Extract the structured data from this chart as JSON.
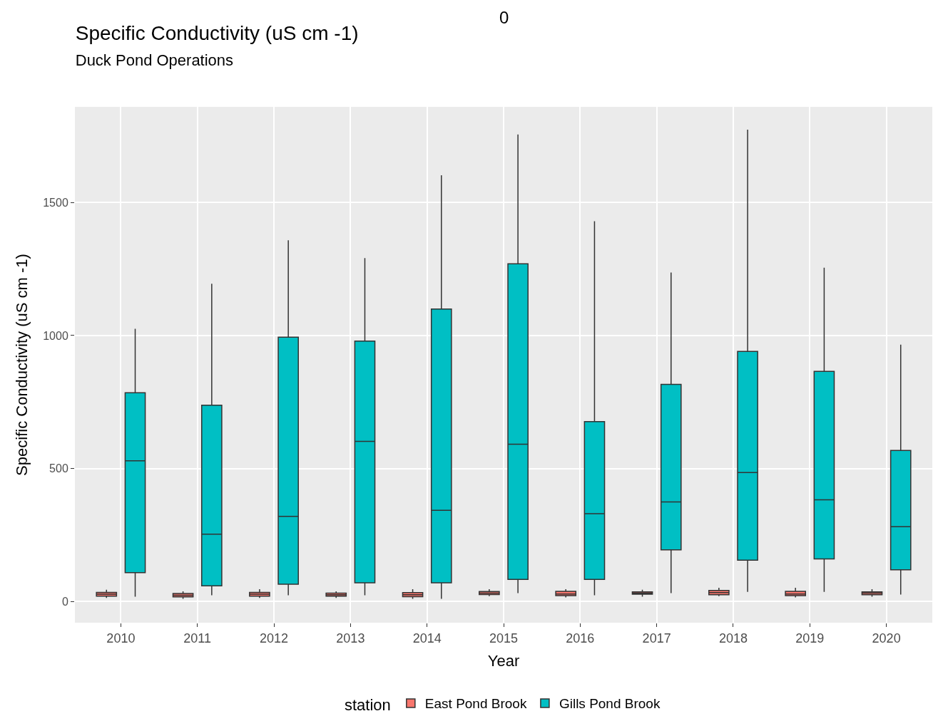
{
  "chart_data": {
    "type": "box",
    "title": "Specific Conductivity (uS cm -1)",
    "subtitle": "Duck Pond Operations",
    "xlabel": "Year",
    "ylabel": "Specific Conductivity (uS cm -1)",
    "legend_title": "station",
    "annotations": [
      "0"
    ],
    "categories": [
      "2010",
      "2011",
      "2012",
      "2013",
      "2014",
      "2015",
      "2016",
      "2017",
      "2018",
      "2019",
      "2020"
    ],
    "series": [
      {
        "name": "East Pond Brook",
        "color": "#f8766d",
        "boxes": [
          {
            "low": 13,
            "q1": 20,
            "median": 27,
            "q3": 34,
            "high": 44
          },
          {
            "low": 10,
            "q1": 17,
            "median": 23,
            "q3": 30,
            "high": 38
          },
          {
            "low": 13,
            "q1": 20,
            "median": 27,
            "q3": 34,
            "high": 46
          },
          {
            "low": 13,
            "q1": 20,
            "median": 25,
            "q3": 31,
            "high": 38
          },
          {
            "low": 10,
            "q1": 18,
            "median": 25,
            "q3": 33,
            "high": 46
          },
          {
            "low": 20,
            "q1": 26,
            "median": 31,
            "q3": 37,
            "high": 46
          },
          {
            "low": 15,
            "q1": 22,
            "median": 28,
            "q3": 38,
            "high": 46
          },
          {
            "low": 18,
            "q1": 27,
            "median": 31,
            "q3": 36,
            "high": 44
          },
          {
            "low": 20,
            "q1": 25,
            "median": 33,
            "q3": 41,
            "high": 51
          },
          {
            "low": 15,
            "q1": 22,
            "median": 28,
            "q3": 38,
            "high": 51
          },
          {
            "low": 18,
            "q1": 25,
            "median": 31,
            "q3": 36,
            "high": 46
          }
        ]
      },
      {
        "name": "Gills Pond Brook",
        "color": "#00bfc4",
        "boxes": [
          {
            "low": 18,
            "q1": 108,
            "median": 529,
            "q3": 785,
            "high": 1025
          },
          {
            "low": 23,
            "q1": 59,
            "median": 253,
            "q3": 738,
            "high": 1195
          },
          {
            "low": 23,
            "q1": 65,
            "median": 320,
            "q3": 994,
            "high": 1358
          },
          {
            "low": 23,
            "q1": 70,
            "median": 602,
            "q3": 979,
            "high": 1291
          },
          {
            "low": 10,
            "q1": 70,
            "median": 343,
            "q3": 1100,
            "high": 1603
          },
          {
            "low": 31,
            "q1": 83,
            "median": 591,
            "q3": 1270,
            "high": 1756
          },
          {
            "low": 23,
            "q1": 83,
            "median": 330,
            "q3": 676,
            "high": 1430
          },
          {
            "low": 31,
            "q1": 194,
            "median": 374,
            "q3": 816,
            "high": 1237
          },
          {
            "low": 36,
            "q1": 155,
            "median": 485,
            "q3": 940,
            "high": 1774
          },
          {
            "low": 36,
            "q1": 160,
            "median": 382,
            "q3": 865,
            "high": 1255
          },
          {
            "low": 26,
            "q1": 119,
            "median": 281,
            "q3": 568,
            "high": 966
          }
        ]
      }
    ],
    "ylim": [
      -80,
      1860
    ],
    "yticks": [
      0,
      500,
      1000,
      1500
    ],
    "grid": true,
    "legend": "bottom"
  }
}
